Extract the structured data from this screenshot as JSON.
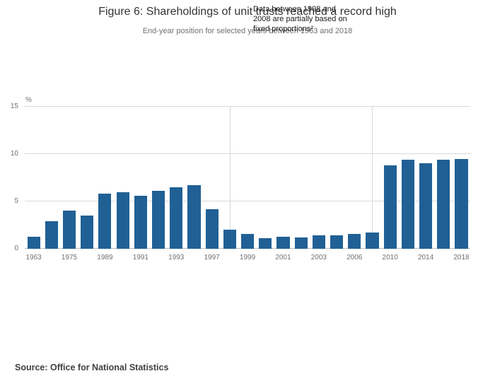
{
  "header": {
    "title": "Figure 6: Shareholdings of unit trusts reached a record high",
    "subtitle": "End-year position for selected years between 1963 and 2018"
  },
  "annotation": {
    "lines": [
      "Data between 1998 and",
      "2008 are partially based on",
      "fixed proportions²"
    ]
  },
  "footer": {
    "source": "Source: Office for National Statistics"
  },
  "chart_data": {
    "type": "bar",
    "title": "Figure 6: Shareholdings of unit trusts reached a record high",
    "subtitle": "End-year position for selected years between 1963 and 2018",
    "ylabel": "%",
    "xlabel": "",
    "ylim": [
      0,
      15
    ],
    "yticks": [
      0,
      5,
      10,
      15
    ],
    "grid": true,
    "bar_color": "#206095",
    "categories": [
      "1963",
      "",
      "1975",
      "",
      "1989",
      "",
      "1991",
      "",
      "1993",
      "",
      "1997",
      "",
      "1999",
      "",
      "2001",
      "",
      "2003",
      "",
      "2006",
      "",
      "2010",
      "",
      "2014",
      "",
      "2018"
    ],
    "values": [
      1.3,
      2.9,
      4.0,
      3.5,
      5.8,
      6.0,
      5.6,
      6.1,
      6.5,
      6.7,
      4.2,
      2.0,
      1.6,
      1.1,
      1.3,
      1.2,
      1.4,
      1.4,
      1.6,
      1.7,
      8.8,
      9.4,
      9.0,
      9.4,
      9.5
    ],
    "reference_line_bar_indices": [
      11,
      19
    ],
    "annotation": "Data between 1998 and 2008 are partially based on fixed proportions²",
    "legend": "none"
  }
}
